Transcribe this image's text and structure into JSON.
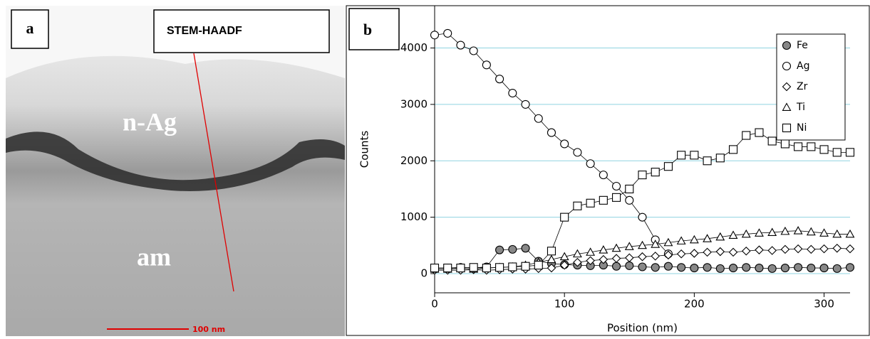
{
  "panel_a": {
    "label": "a",
    "caption": "STEM-HAADF",
    "regions": [
      "n-Ag",
      "am"
    ],
    "scale_bar": "100 nm"
  },
  "chart_data": {
    "type": "line",
    "panel_label": "b",
    "x_label": "Position (nm)",
    "y_label": "Counts",
    "x": [
      0,
      10,
      20,
      30,
      40,
      50,
      60,
      70,
      80,
      90,
      100,
      110,
      120,
      130,
      140,
      150,
      160,
      170,
      180,
      190,
      200,
      210,
      220,
      230,
      240,
      250,
      260,
      270,
      280,
      290,
      300,
      310,
      320
    ],
    "series": [
      {
        "name": "Fe",
        "marker": "filled-circle",
        "color": "#000000",
        "values": [
          100,
          100,
          110,
          100,
          120,
          420,
          430,
          450,
          220,
          180,
          160,
          150,
          140,
          150,
          130,
          140,
          120,
          110,
          130,
          110,
          100,
          110,
          90,
          100,
          110,
          100,
          90,
          100,
          110,
          100,
          100,
          90,
          110
        ]
      },
      {
        "name": "Ag",
        "marker": "circle",
        "color": "#000000",
        "values": [
          4230,
          4260,
          4050,
          3950,
          3700,
          3450,
          3200,
          3000,
          2750,
          2500,
          2300,
          2150,
          1950,
          1750,
          1550,
          1300,
          1000,
          600,
          350,
          null,
          null,
          null,
          null,
          null,
          null,
          null,
          null,
          null,
          null,
          null,
          null,
          null,
          null
        ]
      },
      {
        "name": "Zr",
        "marker": "diamond",
        "color": "#000000",
        "values": [
          60,
          60,
          60,
          70,
          60,
          70,
          80,
          80,
          90,
          100,
          150,
          200,
          230,
          250,
          270,
          280,
          300,
          310,
          330,
          350,
          360,
          380,
          390,
          380,
          400,
          420,
          410,
          430,
          440,
          430,
          440,
          450,
          440
        ]
      },
      {
        "name": "Ti",
        "marker": "triangle",
        "color": "#000000",
        "values": [
          80,
          80,
          90,
          80,
          100,
          110,
          120,
          150,
          200,
          250,
          300,
          350,
          380,
          420,
          450,
          480,
          500,
          520,
          550,
          580,
          600,
          620,
          650,
          680,
          700,
          720,
          730,
          750,
          760,
          740,
          720,
          700,
          700
        ]
      },
      {
        "name": "Ni",
        "marker": "square",
        "color": "#000000",
        "values": [
          100,
          100,
          100,
          110,
          100,
          110,
          120,
          130,
          150,
          400,
          1000,
          1200,
          1250,
          1300,
          1350,
          1500,
          1750,
          1800,
          1900,
          2100,
          2100,
          2000,
          2050,
          2200,
          2450,
          2500,
          2350,
          2300,
          2250,
          2250,
          2200,
          2150,
          2150
        ]
      }
    ],
    "xlim": [
      0,
      320
    ],
    "ylim": [
      -340,
      4750
    ],
    "xticks": [
      0,
      100,
      200,
      300
    ],
    "yticks": [
      0,
      1000,
      2000,
      3000,
      4000
    ],
    "grid": true,
    "grid_color": "#8fd3e0",
    "legend": "top-right"
  }
}
